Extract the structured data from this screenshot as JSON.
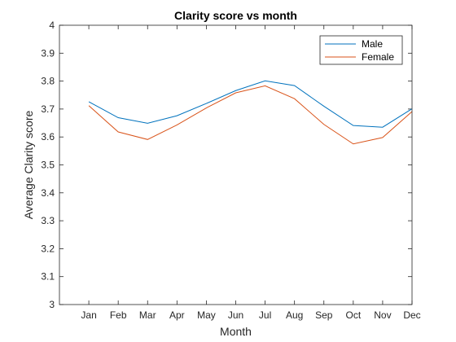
{
  "chart_data": {
    "type": "line",
    "title": "Clarity score vs month",
    "xlabel": "Month",
    "ylabel": "Average Clarity score",
    "categories": [
      "Jan",
      "Feb",
      "Mar",
      "Apr",
      "May",
      "Jun",
      "Jul",
      "Aug",
      "Sep",
      "Oct",
      "Nov",
      "Dec"
    ],
    "xlim": [
      0,
      12
    ],
    "ylim": [
      3,
      4
    ],
    "yticks": [
      3,
      3.1,
      3.2,
      3.3,
      3.4,
      3.5,
      3.6,
      3.7,
      3.8,
      3.9,
      4
    ],
    "yticks_labels": [
      "3",
      "3.1",
      "3.2",
      "3.3",
      "3.4",
      "3.5",
      "3.6",
      "3.7",
      "3.8",
      "3.9",
      "4"
    ],
    "grid": false,
    "legend": "top-right",
    "series": [
      {
        "name": "Male",
        "color": "#0072BD",
        "values": [
          3.726,
          3.669,
          3.649,
          3.676,
          3.72,
          3.766,
          3.801,
          3.784,
          3.71,
          3.641,
          3.635,
          3.701
        ]
      },
      {
        "name": "Female",
        "color": "#D95319",
        "values": [
          3.712,
          3.618,
          3.591,
          3.643,
          3.704,
          3.758,
          3.783,
          3.737,
          3.645,
          3.575,
          3.598,
          3.691
        ]
      }
    ]
  }
}
